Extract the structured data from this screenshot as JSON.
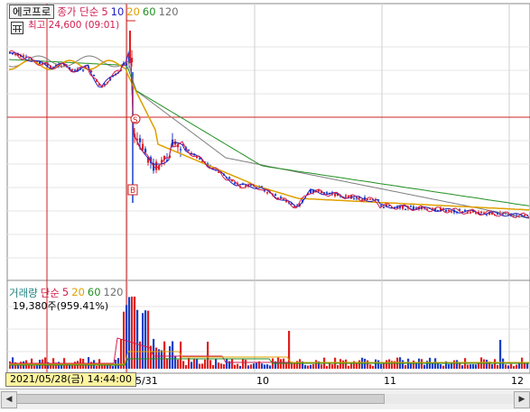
{
  "stock": {
    "name": "에코프로",
    "ma_label": "종가 단순",
    "ma_periods": [
      "5",
      "10",
      "20",
      "60",
      "120"
    ],
    "high_note": "최고 24,600 (09:01)"
  },
  "volume": {
    "label": "거래량",
    "ma_label": "단순",
    "ma_periods": [
      "5",
      "20",
      "60",
      "120"
    ],
    "value_text": "19,380주(959.41%)"
  },
  "markers": {
    "sell": "S",
    "buy": "B"
  },
  "dates": {
    "cursor": "2021/05/28(금) 14:44:00",
    "labels": [
      "05/31",
      "10",
      "11",
      "12"
    ]
  },
  "colors": {
    "up": "#e0201e",
    "down": "#1840c8",
    "ma5": "#d02050",
    "ma10": "#2020c0",
    "ma20": "#e0a000",
    "ma60": "#209020",
    "ma120": "#808080",
    "crosshair": "#d02020"
  },
  "scrollbar": {
    "thumb_fraction": 0.74
  }
}
